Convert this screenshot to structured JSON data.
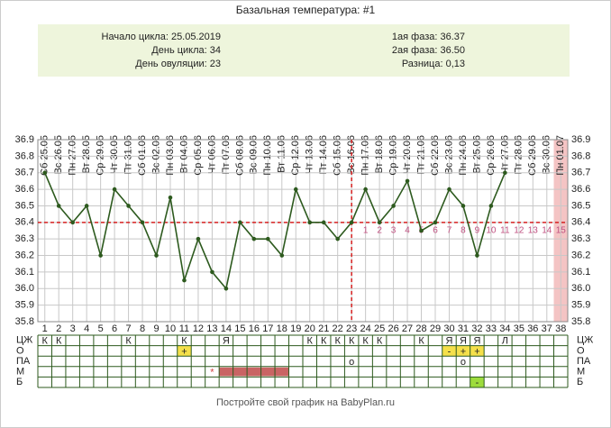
{
  "chart_data": {
    "type": "line",
    "title": "Базальная температура: #1",
    "info_left": [
      "Начало цикла: 25.05.2019",
      "День цикла: 34",
      "День овуляции: 23"
    ],
    "info_right": [
      "1ая фаза: 36.37",
      "2ая фаза: 36.50",
      "Разница: 0,13"
    ],
    "dates": [
      "Сб 25.05",
      "Вс 26.05",
      "Пн 27.05",
      "Вт 28.05",
      "Ср 29.05",
      "Чт 30.05",
      "Пт 31.05",
      "Сб 01.06",
      "Вс 02.06",
      "Пн 03.06",
      "Вт 04.06",
      "Ср 05.06",
      "Чт 06.06",
      "Пт 07.06",
      "Сб 08.06",
      "Вс 09.06",
      "Пн 10.06",
      "Вт 11.06",
      "Ср 12.06",
      "Чт 13.06",
      "Пт 14.06",
      "Сб 15.06",
      "Вс 16.06",
      "Пн 17.06",
      "Вт 18.06",
      "Ср 19.06",
      "Чт 20.06",
      "Пт 21.06",
      "Сб 22.06",
      "Вс 23.06",
      "Пн 24.06",
      "Вт 25.06",
      "Ср 26.06",
      "Чт 27.06",
      "Пт 28.06",
      "Сб 29.06",
      "Вс 30.06",
      "Пн 01.07"
    ],
    "x": [
      1,
      2,
      3,
      4,
      5,
      6,
      7,
      8,
      9,
      10,
      11,
      12,
      13,
      14,
      15,
      16,
      17,
      18,
      19,
      20,
      21,
      22,
      23,
      24,
      25,
      26,
      27,
      28,
      29,
      30,
      31,
      32,
      33,
      34,
      35,
      36,
      37,
      38
    ],
    "values": [
      36.7,
      36.5,
      36.4,
      36.5,
      36.2,
      36.6,
      36.5,
      36.4,
      36.2,
      36.55,
      36.05,
      36.3,
      36.1,
      36.0,
      36.4,
      36.3,
      36.3,
      36.2,
      36.6,
      36.4,
      36.4,
      36.3,
      36.4,
      36.6,
      36.4,
      36.5,
      36.65,
      36.35,
      36.4,
      36.6,
      36.5,
      36.2,
      36.5,
      36.7,
      null,
      null,
      null,
      null
    ],
    "color": "#2d5a1e",
    "ylim": [
      35.8,
      36.9
    ],
    "yticks": [
      35.8,
      35.9,
      {
        "value": 36.0,
        "label": "36.0"
      },
      36.1,
      36.2,
      36.3,
      36.4,
      36.5,
      36.6,
      36.7,
      36.8,
      36.9
    ],
    "grid": true,
    "coverline": 36.4,
    "ovulation_day": 23,
    "phase2_days": [
      1,
      2,
      3,
      4,
      5,
      6,
      7,
      8,
      9,
      10,
      11,
      12,
      13,
      14,
      15
    ],
    "shaded_day": 38,
    "table": [
      {
        "label": "ЦЖ",
        "cells": [
          {
            "day": 1,
            "text": "К"
          },
          {
            "day": 2,
            "text": "К"
          },
          {
            "day": 7,
            "text": "К"
          },
          {
            "day": 11,
            "text": "К"
          },
          {
            "day": 14,
            "text": "Я"
          },
          {
            "day": 20,
            "text": "К"
          },
          {
            "day": 21,
            "text": "К"
          },
          {
            "day": 22,
            "text": "К"
          },
          {
            "day": 23,
            "text": "К"
          },
          {
            "day": 24,
            "text": "К"
          },
          {
            "day": 25,
            "text": "К"
          },
          {
            "day": 28,
            "text": "К"
          },
          {
            "day": 30,
            "text": "Я"
          },
          {
            "day": 31,
            "text": "Я"
          },
          {
            "day": 32,
            "text": "Я"
          },
          {
            "day": 34,
            "text": "Л"
          }
        ]
      },
      {
        "label": "О",
        "cells": [
          {
            "day": 11,
            "text": "+",
            "color": "#f5e04a"
          },
          {
            "day": 30,
            "text": "-",
            "color": "#f5e04a"
          },
          {
            "day": 31,
            "text": "+",
            "color": "#f5e04a"
          },
          {
            "day": 32,
            "text": "+",
            "color": "#f5e04a"
          }
        ]
      },
      {
        "label": "ПА",
        "cells": [
          {
            "day": 23,
            "text": "о"
          },
          {
            "day": 31,
            "text": "о"
          }
        ]
      },
      {
        "label": "М",
        "cells": [
          {
            "day": 13,
            "text": "*"
          }
        ],
        "bar": {
          "from": 14,
          "to": 18,
          "color": "#c96464"
        }
      },
      {
        "label": "Б",
        "cells": [
          {
            "day": 32,
            "text": "-",
            "color": "#9ddc3c"
          }
        ]
      }
    ],
    "footer": "Постройте свой график на BabyPlan.ru"
  }
}
